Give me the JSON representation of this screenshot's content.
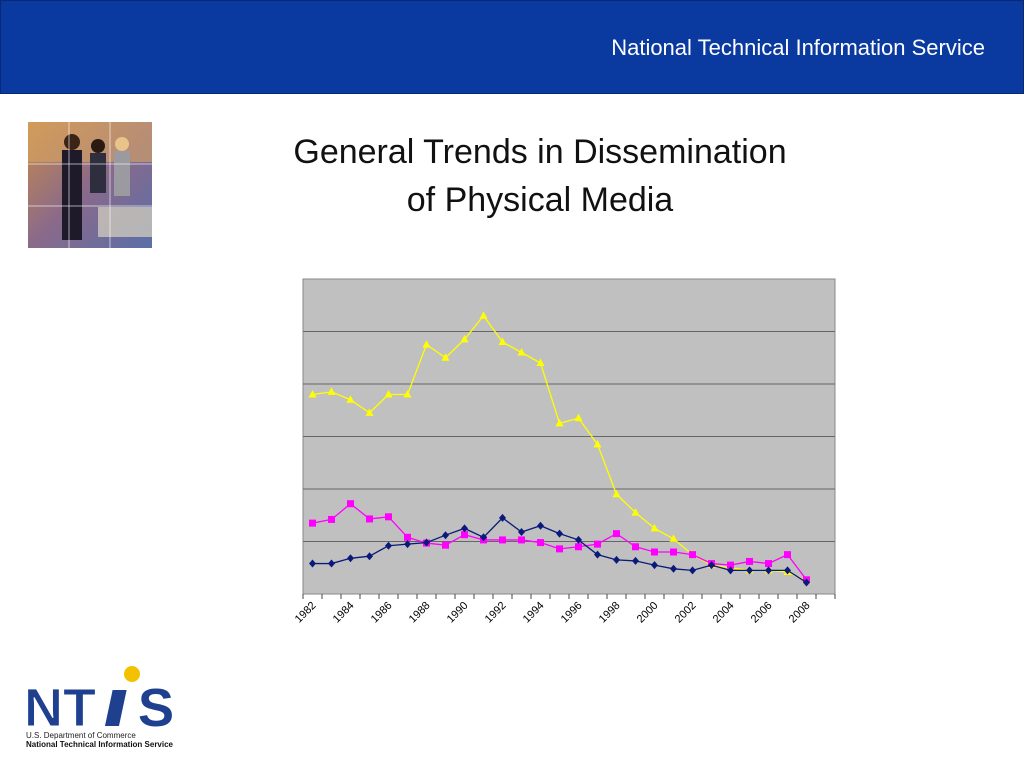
{
  "header": {
    "title": "National Technical Information Service",
    "color": "#0a3a9f"
  },
  "slide": {
    "title_line1": "General Trends in Dissemination",
    "title_line2": "of Physical Media"
  },
  "logo": {
    "wordmark": "NTiS",
    "line1": "U.S. Department of Commerce",
    "line2": "National Technical Information Service",
    "colors": {
      "letters": "#1f3f8f",
      "dot": "#f2c200"
    }
  },
  "chart_data": {
    "type": "line",
    "title": "",
    "xlabel": "",
    "ylabel": "",
    "grid": true,
    "legend": "none",
    "x": [
      1982,
      1983,
      1984,
      1985,
      1986,
      1987,
      1988,
      1989,
      1990,
      1991,
      1992,
      1993,
      1994,
      1995,
      1996,
      1997,
      1998,
      1999,
      2000,
      2001,
      2002,
      2003,
      2004,
      2005,
      2006,
      2007,
      2008
    ],
    "x_tick_labels": [
      "1982",
      "1984",
      "1986",
      "1988",
      "1990",
      "1992",
      "1994",
      "1996",
      "1998",
      "2000",
      "2002",
      "2004",
      "2006",
      "2008"
    ],
    "ylim": [
      0,
      6
    ],
    "y_gridlines": 6,
    "plot_background": "#c0c0c0",
    "series": [
      {
        "color": "#ffff00",
        "marker": "triangle",
        "values": [
          3.8,
          3.85,
          3.7,
          3.45,
          3.8,
          3.8,
          4.75,
          4.5,
          4.85,
          5.3,
          4.8,
          4.6,
          4.4,
          3.25,
          3.35,
          2.85,
          1.9,
          1.55,
          1.25,
          1.05,
          0.75,
          0.55,
          0.5,
          0.45,
          0.45,
          0.42,
          0.25
        ]
      },
      {
        "color": "#ff00ff",
        "marker": "square",
        "values": [
          1.35,
          1.42,
          1.72,
          1.43,
          1.47,
          1.08,
          0.97,
          0.93,
          1.13,
          1.03,
          1.03,
          1.03,
          0.98,
          0.86,
          0.9,
          0.95,
          1.15,
          0.9,
          0.8,
          0.8,
          0.75,
          0.58,
          0.55,
          0.62,
          0.58,
          0.75,
          0.27
        ]
      },
      {
        "color": "#0a1a7a",
        "marker": "diamond",
        "values": [
          0.58,
          0.58,
          0.68,
          0.72,
          0.92,
          0.95,
          0.98,
          1.12,
          1.25,
          1.08,
          1.45,
          1.18,
          1.3,
          1.15,
          1.03,
          0.75,
          0.65,
          0.63,
          0.55,
          0.48,
          0.45,
          0.55,
          0.45,
          0.45,
          0.45,
          0.45,
          0.22
        ]
      }
    ]
  }
}
